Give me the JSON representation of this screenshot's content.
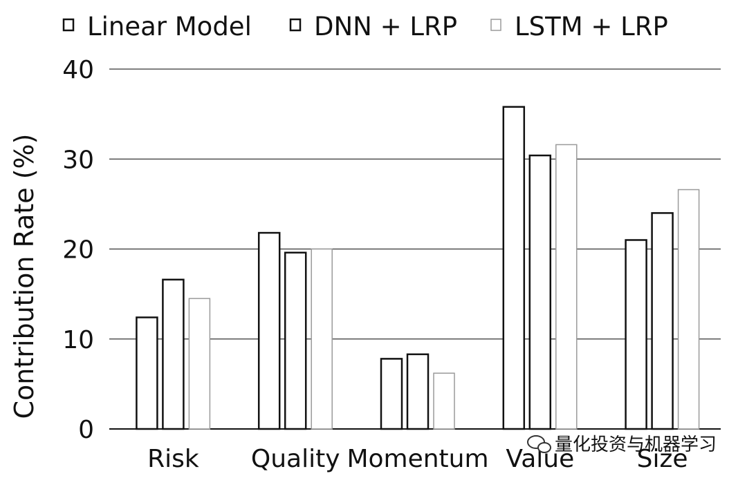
{
  "chart_data": {
    "type": "bar",
    "categories": [
      "Risk",
      "Quality",
      "Momentum",
      "Value",
      "Size"
    ],
    "series": [
      {
        "name": "Linear Model",
        "values": [
          12.4,
          21.8,
          7.8,
          35.8,
          21.0
        ],
        "style": "black-outline"
      },
      {
        "name": "DNN + LRP",
        "values": [
          16.6,
          19.6,
          8.3,
          30.4,
          24.0
        ],
        "style": "black-outline"
      },
      {
        "name": "LSTM + LRP",
        "values": [
          14.5,
          20.0,
          6.2,
          31.6,
          26.6
        ],
        "style": "faint-outline"
      }
    ],
    "title": "",
    "xlabel": "",
    "ylabel": "Contribution Rate (%)",
    "ylim": [
      0,
      40
    ],
    "yticks": [
      0,
      10,
      20,
      30,
      40
    ],
    "grid": true,
    "legend_position": "top",
    "watermark": "量化投资与机器学习"
  }
}
